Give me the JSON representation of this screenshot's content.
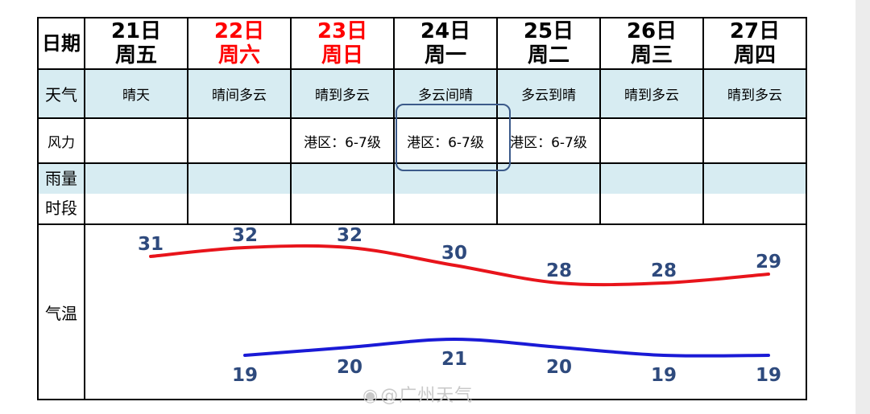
{
  "row_labels": {
    "date": "日期",
    "weather": "天气",
    "wind": "风力",
    "rain_period": [
      "雨量",
      "时段"
    ],
    "temperature": "气温"
  },
  "days": [
    {
      "date": "21日",
      "weekday": "周五",
      "weather": "晴天",
      "wind": "",
      "holiday": false
    },
    {
      "date": "22日",
      "weekday": "周六",
      "weather": "晴间多云",
      "wind": "",
      "holiday": true
    },
    {
      "date": "23日",
      "weekday": "周日",
      "weather": "晴到多云",
      "wind": "港区：6-7级",
      "holiday": true
    },
    {
      "date": "24日",
      "weekday": "周一",
      "weather": "多云间晴",
      "wind": "港区：6-7级",
      "holiday": false
    },
    {
      "date": "25日",
      "weekday": "周二",
      "weather": "多云到晴",
      "wind": "港区：6-7级",
      "holiday": false
    },
    {
      "date": "26日",
      "weekday": "周三",
      "weather": "晴到多云",
      "wind": "",
      "holiday": false
    },
    {
      "date": "27日",
      "weekday": "周四",
      "weather": "晴到多云",
      "wind": "",
      "holiday": false
    }
  ],
  "colors": {
    "high_line": "#e8141b",
    "low_line": "#1a1ad6",
    "holiday_text": "#ff0000",
    "label_text": "#2e4a7d",
    "row_shade": "#d7ecf2"
  },
  "chart_data": {
    "type": "line",
    "categories": [
      "21日",
      "22日",
      "23日",
      "24日",
      "25日",
      "26日",
      "27日"
    ],
    "series": [
      {
        "values": [
          31,
          32,
          32,
          30,
          28,
          28,
          29
        ]
      },
      {
        "values": [
          null,
          19,
          20,
          21,
          20,
          19,
          19
        ]
      }
    ],
    "title": "",
    "xlabel": "",
    "ylabel": "气温",
    "grid": false,
    "legend": "none"
  },
  "watermark": "@广州天气"
}
